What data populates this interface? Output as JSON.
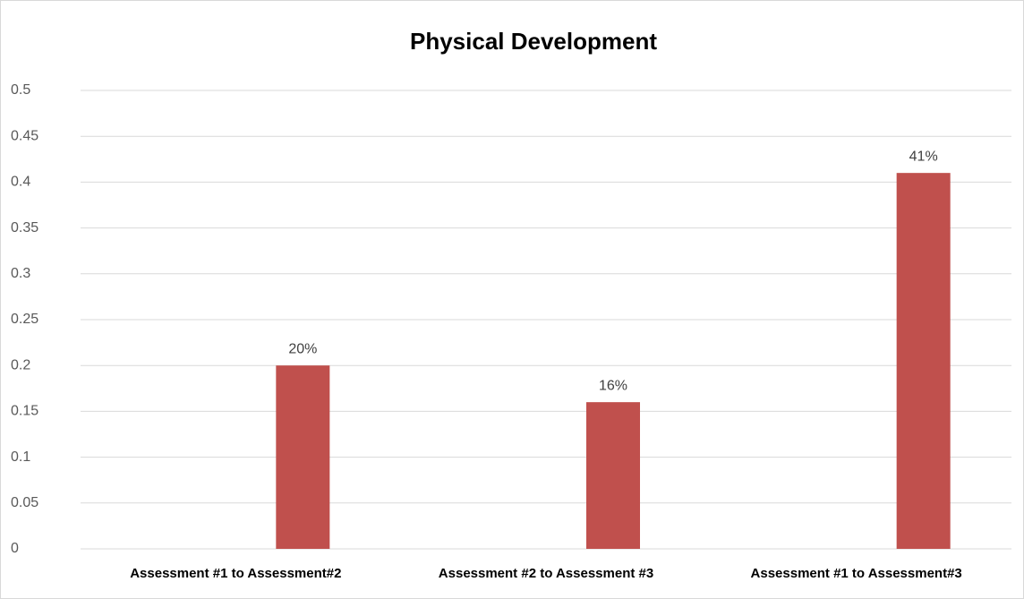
{
  "chart_data": {
    "type": "bar",
    "title": "Physical Development",
    "categories": [
      "Assessment #1 to Assessment#2",
      "Assessment #2 to Assessment #3",
      "Assessment #1 to Assessment#3"
    ],
    "values": [
      0.2,
      0.16,
      0.41
    ],
    "value_labels": [
      "20%",
      "16%",
      "41%"
    ],
    "color": "#c0504d",
    "ylim": [
      0,
      0.5
    ],
    "yticks": [
      0,
      0.05,
      0.1,
      0.15,
      0.2,
      0.25,
      0.3,
      0.35,
      0.4,
      0.45,
      0.5
    ],
    "grid": true
  }
}
